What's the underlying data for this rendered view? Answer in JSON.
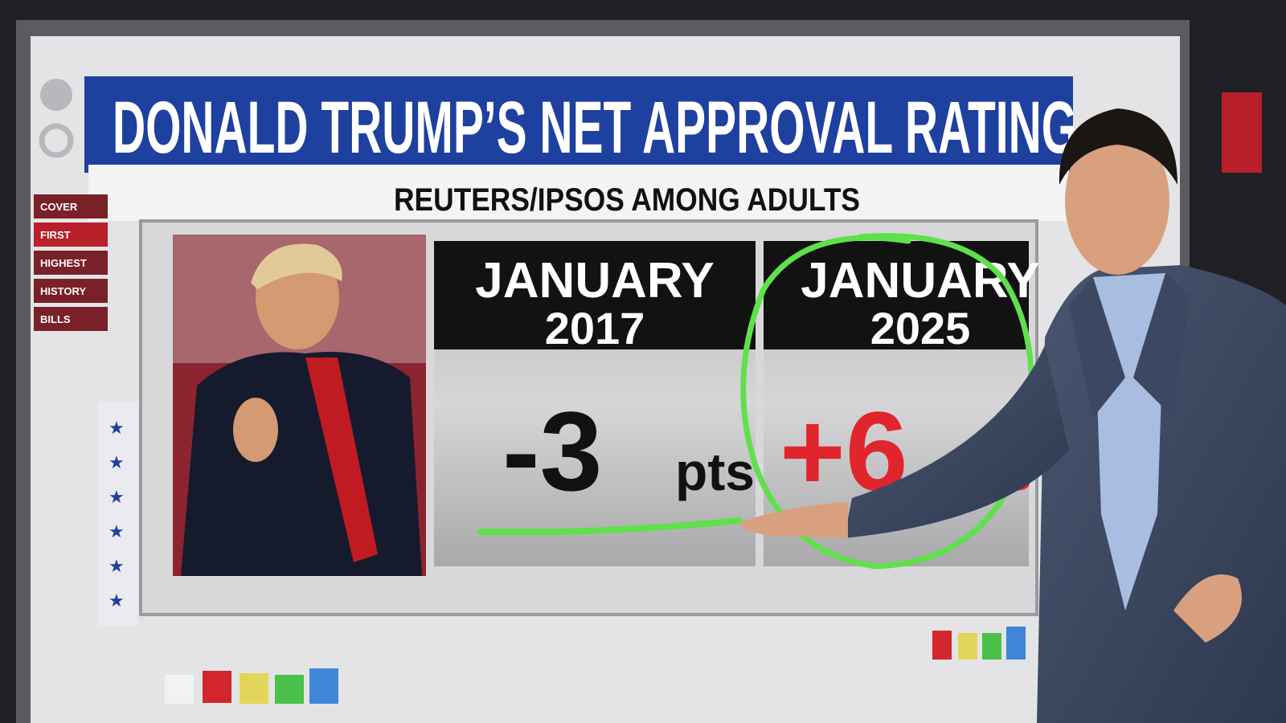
{
  "screen": {
    "title": "DONALD TRUMP’S NET APPROVAL RATING",
    "subtitle": "REUTERS/IPSOS AMONG ADULTS",
    "menu": [
      "COVER",
      "FIRST",
      "HIGHEST",
      "HISTORY",
      "BILLS"
    ],
    "panels": [
      {
        "month": "JANUARY",
        "year": "2017",
        "value": "-3",
        "unit": "pts"
      },
      {
        "month": "JANUARY",
        "year": "2025",
        "value": "+6",
        "unit": "pts"
      }
    ]
  }
}
